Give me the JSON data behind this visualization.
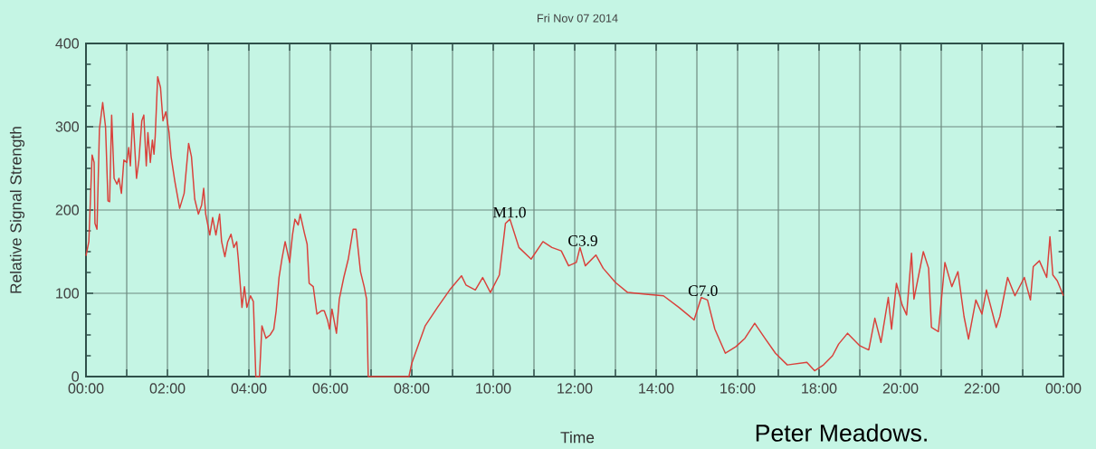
{
  "chart_data": {
    "type": "line",
    "title": "Fri Nov 07 2014",
    "xlabel": "Time",
    "ylabel": "Relative Signal Strength",
    "xlim": [
      0,
      24
    ],
    "ylim": [
      0,
      400
    ],
    "xticks": [
      {
        "value": 0,
        "label": "00:00"
      },
      {
        "value": 1,
        "label": null
      },
      {
        "value": 2,
        "label": "02:00"
      },
      {
        "value": 3,
        "label": null
      },
      {
        "value": 4,
        "label": "04:00"
      },
      {
        "value": 5,
        "label": null
      },
      {
        "value": 6,
        "label": "06:00"
      },
      {
        "value": 7,
        "label": null
      },
      {
        "value": 8,
        "label": "08:00"
      },
      {
        "value": 9,
        "label": null
      },
      {
        "value": 10,
        "label": "10:00"
      },
      {
        "value": 11,
        "label": null
      },
      {
        "value": 12,
        "label": "12:00"
      },
      {
        "value": 13,
        "label": null
      },
      {
        "value": 14,
        "label": "14:00"
      },
      {
        "value": 15,
        "label": null
      },
      {
        "value": 16,
        "label": "16:00"
      },
      {
        "value": 17,
        "label": null
      },
      {
        "value": 18,
        "label": "18:00"
      },
      {
        "value": 19,
        "label": null
      },
      {
        "value": 20,
        "label": "20:00"
      },
      {
        "value": 21,
        "label": null
      },
      {
        "value": 22,
        "label": "22:00"
      },
      {
        "value": 23,
        "label": null
      },
      {
        "value": 24,
        "label": "00:00"
      }
    ],
    "yticks": [
      0,
      100,
      200,
      300,
      400
    ],
    "grid": true,
    "annotations": [
      {
        "text": "M1.0",
        "x": 10.4,
        "y": 189
      },
      {
        "text": "C3.9",
        "x": 12.2,
        "y": 155
      },
      {
        "text": "C7.0",
        "x": 15.15,
        "y": 95
      },
      "Peter Meadows."
    ],
    "series": [
      {
        "color": "#d9413b",
        "x": [
          0,
          0.07,
          0.15,
          0.2,
          0.22,
          0.27,
          0.33,
          0.41,
          0.48,
          0.54,
          0.58,
          0.63,
          0.69,
          0.76,
          0.81,
          0.87,
          0.93,
          1.0,
          1.05,
          1.09,
          1.15,
          1.24,
          1.3,
          1.37,
          1.42,
          1.48,
          1.52,
          1.58,
          1.63,
          1.67,
          1.7,
          1.76,
          1.83,
          1.89,
          1.96,
          2.04,
          2.09,
          2.18,
          2.3,
          2.41,
          2.52,
          2.59,
          2.67,
          2.76,
          2.84,
          2.89,
          2.94,
          3.04,
          3.11,
          3.19,
          3.28,
          3.33,
          3.41,
          3.48,
          3.56,
          3.63,
          3.7,
          3.74,
          3.83,
          3.89,
          3.95,
          4.04,
          4.11,
          4.17,
          4.26,
          4.32,
          4.42,
          4.52,
          4.61,
          4.67,
          4.74,
          4.81,
          4.89,
          5.0,
          5.07,
          5.13,
          5.21,
          5.26,
          5.36,
          5.43,
          5.48,
          5.58,
          5.67,
          5.78,
          5.85,
          5.93,
          5.98,
          6.04,
          6.15,
          6.22,
          6.33,
          6.44,
          6.56,
          6.63,
          6.74,
          6.83,
          6.89,
          6.93,
          7.93,
          8.0,
          8.33,
          8.63,
          8.93,
          9.22,
          9.33,
          9.56,
          9.74,
          9.93,
          10.15,
          10.3,
          10.41,
          10.63,
          10.93,
          11.22,
          11.44,
          11.67,
          11.85,
          12.04,
          12.13,
          12.26,
          12.52,
          12.7,
          13.0,
          13.3,
          13.74,
          14.18,
          14.56,
          14.93,
          15.11,
          15.26,
          15.44,
          15.7,
          15.96,
          16.18,
          16.42,
          16.67,
          16.93,
          17.22,
          17.7,
          17.89,
          18.11,
          18.33,
          18.48,
          18.7,
          19.0,
          19.22,
          19.37,
          19.52,
          19.7,
          19.78,
          19.9,
          20.04,
          20.15,
          20.27,
          20.33,
          20.56,
          20.69,
          20.76,
          20.93,
          21.09,
          21.26,
          21.41,
          21.56,
          21.67,
          21.85,
          22.0,
          22.11,
          22.35,
          22.44,
          22.63,
          22.81,
          23.04,
          23.19,
          23.26,
          23.41,
          23.59,
          23.67,
          23.74,
          23.85,
          24.0
        ],
        "values": [
          145,
          162,
          266,
          257,
          184,
          177,
          297,
          329,
          300,
          211,
          210,
          314,
          238,
          231,
          238,
          220,
          260,
          257,
          275,
          253,
          316,
          238,
          260,
          307,
          314,
          253,
          293,
          257,
          284,
          267,
          289,
          360,
          347,
          307,
          318,
          293,
          264,
          235,
          202,
          220,
          280,
          264,
          213,
          195,
          206,
          226,
          195,
          170,
          191,
          170,
          195,
          162,
          144,
          162,
          171,
          155,
          162,
          141,
          83,
          108,
          83,
          97,
          90,
          0,
          0,
          61,
          46,
          50,
          57,
          79,
          119,
          141,
          162,
          137,
          170,
          189,
          182,
          195,
          173,
          159,
          112,
          108,
          75,
          79,
          79,
          68,
          57,
          81,
          52,
          93,
          119,
          141,
          177,
          177,
          126,
          108,
          93,
          0,
          0,
          16,
          61,
          83,
          104,
          121,
          110,
          104,
          119,
          101,
          122,
          184,
          189,
          155,
          141,
          162,
          155,
          151,
          133,
          137,
          155,
          133,
          146,
          130,
          113,
          101,
          99,
          97,
          83,
          68,
          95,
          92,
          57,
          28,
          36,
          46,
          64,
          46,
          28,
          14,
          17,
          7,
          14,
          25,
          39,
          52,
          37,
          32,
          70,
          41,
          95,
          57,
          112,
          86,
          74,
          148,
          93,
          150,
          130,
          59,
          54,
          137,
          108,
          126,
          72,
          45,
          92,
          75,
          104,
          59,
          72,
          119,
          97,
          119,
          92,
          132,
          139,
          119,
          168,
          122,
          115,
          97
        ]
      }
    ]
  }
}
